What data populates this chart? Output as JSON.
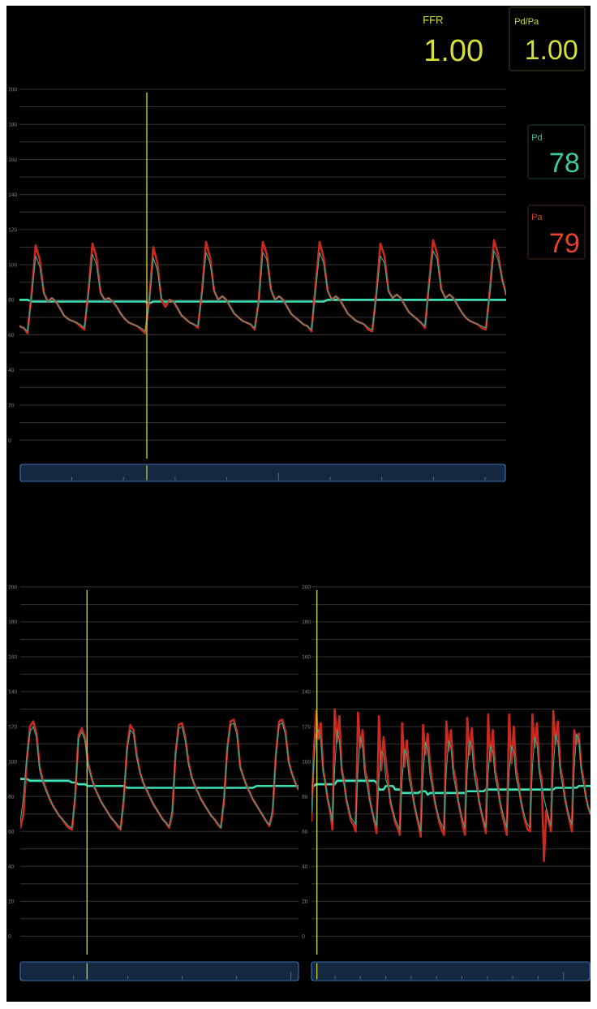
{
  "chart_data": [
    {
      "type": "other",
      "annotations": [
        "FFR",
        "1.00",
        "Pd/Pa",
        "1.00",
        "Pd",
        "78",
        "Pa",
        "79"
      ],
      "colors": [
        "#d4e03a",
        "#d4e03a",
        "#3ecba6",
        "#e8432f"
      ]
    },
    {
      "type": "line",
      "categories": [
        null,
        null,
        null,
        null,
        null,
        null,
        null,
        null,
        null,
        null,
        null,
        null,
        null,
        null,
        null,
        null,
        null,
        null,
        null,
        null,
        null,
        null,
        null,
        null,
        null,
        null,
        null,
        null,
        null,
        null,
        null,
        null,
        null,
        null,
        null,
        null,
        null,
        null,
        null,
        null,
        null,
        null,
        null,
        null,
        null,
        null,
        null,
        null,
        null,
        null,
        null,
        null,
        null,
        null,
        null,
        null,
        null,
        null,
        null,
        null,
        null,
        null,
        null,
        null,
        null,
        null,
        null,
        null,
        null,
        null,
        null,
        null,
        null,
        null,
        null,
        null,
        null,
        null,
        null,
        null,
        null,
        null,
        null,
        null,
        null,
        null,
        null,
        null,
        null,
        null,
        null,
        null,
        null,
        null,
        null,
        null,
        null,
        null,
        null,
        null,
        null,
        null,
        null,
        null,
        null,
        null,
        null,
        null,
        null,
        null,
        null,
        null,
        null,
        null,
        null,
        null,
        null,
        null,
        null,
        null,
        null
      ],
      "series": [
        {
          "color": "#cc2a1f",
          "values": [
            65,
            64,
            61,
            84,
            111,
            103,
            84,
            79,
            81,
            79,
            75,
            71,
            69,
            68,
            67,
            65,
            63,
            85,
            112,
            104,
            84,
            80,
            81,
            79,
            76,
            72,
            69,
            67,
            66,
            65,
            63,
            61,
            80,
            110,
            101,
            80,
            76,
            80,
            79,
            75,
            71,
            69,
            67,
            66,
            64,
            85,
            113,
            104,
            85,
            80,
            82,
            80,
            76,
            72,
            70,
            68,
            67,
            66,
            63,
            80,
            113,
            106,
            86,
            80,
            82,
            80,
            76,
            72,
            70,
            68,
            66,
            65,
            62,
            88,
            113,
            104,
            85,
            80,
            82,
            80,
            76,
            72,
            70,
            68,
            67,
            66,
            63,
            62,
            84,
            112,
            105,
            85,
            81,
            83,
            81,
            77,
            73,
            71,
            69,
            67,
            64,
            90,
            114,
            106,
            86,
            81,
            83,
            81,
            77,
            73,
            70,
            68,
            67,
            66,
            64,
            63,
            86,
            114,
            106,
            92,
            83
          ]
        },
        {
          "color": "#3fa88b",
          "values": [
            65,
            64,
            62,
            82,
            105,
            99,
            84,
            79,
            81,
            79,
            75,
            71,
            69,
            68,
            67,
            66,
            64,
            83,
            106,
            100,
            84,
            80,
            81,
            79,
            76,
            72,
            69,
            67,
            66,
            65,
            64,
            62,
            78,
            104,
            97,
            81,
            78,
            80,
            79,
            75,
            71,
            69,
            67,
            66,
            65,
            83,
            107,
            101,
            85,
            80,
            82,
            80,
            76,
            72,
            70,
            68,
            67,
            66,
            64,
            78,
            107,
            103,
            86,
            80,
            82,
            80,
            76,
            72,
            70,
            68,
            66,
            65,
            63,
            85,
            107,
            101,
            85,
            80,
            82,
            80,
            76,
            72,
            70,
            68,
            67,
            66,
            64,
            63,
            82,
            105,
            101,
            85,
            81,
            83,
            81,
            77,
            73,
            71,
            69,
            67,
            65,
            88,
            108,
            103,
            86,
            81,
            83,
            81,
            77,
            73,
            70,
            68,
            67,
            66,
            65,
            64,
            84,
            108,
            103,
            92,
            83
          ]
        },
        {
          "color": "#3de0b5",
          "values": [
            80,
            80,
            80,
            79,
            79,
            79,
            79,
            79,
            79,
            79,
            79,
            79,
            79,
            79,
            79,
            79,
            79,
            79,
            79,
            79,
            79,
            79,
            79,
            79,
            79,
            79,
            79,
            79,
            79,
            79,
            79,
            79,
            78,
            79,
            79,
            79,
            79,
            79,
            79,
            79,
            79,
            79,
            79,
            79,
            79,
            79,
            79,
            79,
            79,
            79,
            79,
            79,
            79,
            79,
            79,
            79,
            79,
            79,
            79,
            79,
            79,
            79,
            79,
            79,
            79,
            79,
            79,
            79,
            79,
            79,
            79,
            79,
            79,
            79,
            79,
            79,
            80,
            80,
            80,
            80,
            80,
            80,
            80,
            80,
            80,
            80,
            80,
            80,
            80,
            80,
            80,
            80,
            80,
            80,
            80,
            80,
            80,
            80,
            80,
            80,
            80,
            80,
            80,
            80,
            80,
            80,
            80,
            80,
            80,
            80,
            80,
            80,
            80,
            80,
            80,
            80,
            80,
            80,
            80,
            80,
            80
          ]
        }
      ],
      "ylim": [
        -11,
        200
      ],
      "yticks": [
        0,
        {
          "value": 10,
          "label": null
        },
        20,
        {
          "value": 30,
          "label": null
        },
        40,
        {
          "value": 50,
          "label": null
        },
        60,
        {
          "value": 70,
          "label": null
        },
        80,
        {
          "value": 90,
          "label": null
        },
        100,
        {
          "value": 110,
          "label": null
        },
        120,
        {
          "value": 130,
          "label": null
        },
        140,
        {
          "value": 150,
          "label": null
        },
        160,
        {
          "value": 170,
          "label": null
        },
        180,
        {
          "value": 190,
          "label": null
        },
        200
      ],
      "grid": "y",
      "tick_labels": "y"
    },
    {
      "type": "line",
      "categories": [
        null,
        null,
        null,
        null,
        null,
        null,
        null,
        null,
        null,
        null,
        null,
        null,
        null,
        null,
        null,
        null,
        null,
        null,
        null,
        null,
        null,
        null,
        null,
        null,
        null,
        null,
        null,
        null,
        null,
        null,
        null,
        null,
        null,
        null,
        null,
        null,
        null,
        null,
        null,
        null,
        null,
        null,
        null,
        null,
        null,
        null,
        null,
        null,
        null,
        null,
        null,
        null,
        null,
        null,
        null,
        null,
        null,
        null,
        null,
        null,
        null,
        null,
        null,
        null,
        null,
        null,
        null,
        null,
        null,
        null,
        null,
        null,
        null,
        null,
        null,
        null,
        null,
        null,
        null,
        null,
        null,
        null,
        null,
        null,
        null,
        null,
        null
      ],
      "series": [
        {
          "color": "#cc2a1f",
          "values": [
            62,
            70,
            100,
            120,
            123,
            116,
            97,
            89,
            84,
            79,
            75,
            72,
            69,
            67,
            64,
            62,
            61,
            80,
            115,
            119,
            114,
            99,
            91,
            85,
            81,
            77,
            74,
            71,
            68,
            66,
            63,
            61,
            78,
            108,
            121,
            118,
            104,
            94,
            88,
            84,
            80,
            76,
            73,
            70,
            67,
            65,
            62,
            70,
            105,
            121,
            122,
            114,
            100,
            91,
            86,
            82,
            78,
            75,
            72,
            69,
            67,
            64,
            62,
            78,
            108,
            123,
            124,
            117,
            97,
            91,
            86,
            82,
            78,
            75,
            72,
            69,
            66,
            63,
            70,
            104,
            123,
            124,
            117,
            100,
            93,
            88,
            84
          ]
        },
        {
          "color": "#3fa88b",
          "values": [
            65,
            80,
            102,
            117,
            120,
            114,
            95,
            88,
            83,
            79,
            75,
            72,
            69,
            67,
            65,
            63,
            62,
            82,
            113,
            117,
            112,
            97,
            91,
            85,
            81,
            77,
            74,
            71,
            68,
            66,
            64,
            62,
            80,
            106,
            118,
            116,
            102,
            94,
            88,
            84,
            80,
            76,
            73,
            70,
            67,
            65,
            63,
            72,
            104,
            119,
            120,
            112,
            98,
            91,
            86,
            82,
            78,
            75,
            72,
            69,
            67,
            65,
            62,
            80,
            107,
            121,
            122,
            115,
            96,
            91,
            86,
            82,
            78,
            75,
            72,
            69,
            66,
            64,
            73,
            103,
            121,
            122,
            115,
            99,
            93,
            88,
            84
          ]
        },
        {
          "color": "#3de0b5",
          "values": [
            90,
            90,
            90,
            89,
            89,
            89,
            89,
            89,
            89,
            89,
            89,
            89,
            89,
            89,
            89,
            89,
            88,
            88,
            87,
            87,
            87,
            86,
            86,
            86,
            86,
            86,
            86,
            86,
            86,
            86,
            86,
            86,
            86,
            85,
            85,
            85,
            85,
            85,
            85,
            85,
            85,
            85,
            85,
            85,
            85,
            85,
            85,
            85,
            85,
            85,
            85,
            85,
            85,
            85,
            85,
            85,
            85,
            85,
            85,
            85,
            85,
            85,
            85,
            85,
            85,
            85,
            85,
            85,
            85,
            85,
            85,
            85,
            85,
            86,
            86,
            86,
            86,
            86,
            86,
            86,
            86,
            86,
            86,
            86,
            86,
            86,
            86
          ]
        }
      ],
      "ylim": [
        -11,
        200
      ],
      "yticks": [
        0,
        {
          "value": 10,
          "label": null
        },
        20,
        {
          "value": 30,
          "label": null
        },
        40,
        {
          "value": 50,
          "label": null
        },
        60,
        {
          "value": 70,
          "label": null
        },
        80,
        {
          "value": 90,
          "label": null
        },
        100,
        {
          "value": 110,
          "label": null
        },
        120,
        {
          "value": 130,
          "label": null
        },
        140,
        {
          "value": 150,
          "label": null
        },
        160,
        {
          "value": 170,
          "label": null
        },
        180,
        {
          "value": 190,
          "label": null
        },
        200
      ],
      "grid": "y",
      "tick_labels": "y"
    },
    {
      "type": "line",
      "categories": [
        null,
        null,
        null,
        null,
        null,
        null,
        null,
        null,
        null,
        null,
        null,
        null,
        null,
        null,
        null,
        null,
        null,
        null,
        null,
        null,
        null,
        null,
        null,
        null,
        null,
        null,
        null,
        null,
        null,
        null,
        null,
        null,
        null,
        null,
        null,
        null,
        null,
        null,
        null,
        null,
        null,
        null,
        null,
        null,
        null,
        null,
        null,
        null,
        null,
        null,
        null,
        null,
        null,
        null,
        null,
        null,
        null,
        null,
        null,
        null,
        null,
        null,
        null,
        null,
        null,
        null,
        null,
        null,
        null,
        null,
        null,
        null,
        null,
        null,
        null,
        null,
        null,
        null,
        null,
        null,
        null,
        null,
        null,
        null,
        null,
        null,
        null,
        null,
        null,
        null,
        null,
        null,
        null,
        null,
        null,
        null,
        null,
        null,
        null,
        null,
        null,
        null,
        null,
        null,
        null,
        null,
        null,
        null,
        null,
        null,
        null,
        null,
        null,
        null,
        null,
        null,
        null,
        null,
        null,
        null,
        null
      ],
      "series": [
        {
          "color": "#cc2a1f",
          "values": [
            66,
            105,
            129,
            113,
            122,
            96,
            88,
            78,
            72,
            61,
            130,
            111,
            126,
            96,
            89,
            78,
            72,
            66,
            64,
            60,
            128,
            108,
            118,
            95,
            90,
            79,
            72,
            66,
            59,
            126,
            95,
            114,
            100,
            88,
            76,
            71,
            65,
            62,
            58,
            122,
            97,
            112,
            96,
            86,
            77,
            70,
            64,
            57,
            121,
            104,
            116,
            98,
            88,
            77,
            71,
            65,
            61,
            58,
            123,
            106,
            118,
            96,
            90,
            78,
            71,
            64,
            58,
            125,
            104,
            119,
            96,
            90,
            78,
            71,
            65,
            59,
            127,
            100,
            118,
            95,
            88,
            77,
            70,
            64,
            58,
            127,
            99,
            120,
            96,
            88,
            78,
            71,
            65,
            61,
            60,
            127,
            108,
            122,
            96,
            90,
            43,
            72,
            66,
            60,
            129,
            110,
            123,
            97,
            90,
            79,
            72,
            66,
            60,
            118,
            110,
            116,
            97,
            90,
            80,
            74,
            70
          ]
        },
        {
          "color": "#3fa88b",
          "values": [
            70,
            100,
            116,
            118,
            112,
            94,
            87,
            79,
            73,
            65,
            96,
            118,
            112,
            94,
            87,
            79,
            73,
            68,
            66,
            64,
            95,
            114,
            108,
            92,
            86,
            78,
            72,
            67,
            63,
            90,
            106,
            104,
            90,
            85,
            78,
            72,
            67,
            64,
            61,
            90,
            107,
            104,
            90,
            84,
            77,
            71,
            66,
            60,
            92,
            111,
            107,
            92,
            85,
            78,
            72,
            67,
            64,
            61,
            95,
            112,
            108,
            92,
            85,
            78,
            72,
            67,
            62,
            95,
            112,
            108,
            92,
            85,
            78,
            72,
            67,
            62,
            94,
            109,
            106,
            91,
            85,
            78,
            72,
            67,
            62,
            94,
            109,
            106,
            91,
            85,
            78,
            72,
            67,
            64,
            62,
            96,
            114,
            110,
            93,
            86,
            79,
            73,
            68,
            63,
            96,
            116,
            111,
            94,
            86,
            79,
            73,
            68,
            64,
            96,
            116,
            112,
            95,
            87,
            80,
            74,
            70
          ]
        },
        {
          "color": "#3de0b5",
          "values": [
            86,
            86,
            87,
            87,
            87,
            87,
            87,
            87,
            87,
            87,
            87,
            89,
            89,
            89,
            89,
            89,
            89,
            89,
            89,
            89,
            89,
            89,
            89,
            89,
            89,
            89,
            89,
            89,
            88,
            84,
            84,
            84,
            86,
            86,
            86,
            86,
            84,
            84,
            84,
            82,
            82,
            82,
            82,
            82,
            82,
            82,
            82,
            83,
            83,
            83,
            81,
            82,
            82,
            82,
            82,
            82,
            82,
            82,
            82,
            82,
            82,
            82,
            82,
            82,
            82,
            82,
            82,
            83,
            83,
            83,
            83,
            83,
            83,
            83,
            83,
            84,
            84,
            84,
            84,
            84,
            84,
            84,
            84,
            84,
            84,
            84,
            84,
            84,
            84,
            84,
            84,
            84,
            84,
            84,
            84,
            84,
            84,
            84,
            84,
            84,
            84,
            84,
            84,
            84,
            84,
            85,
            85,
            85,
            85,
            85,
            85,
            85,
            85,
            85,
            85,
            86,
            86,
            86,
            86,
            86,
            86
          ]
        }
      ],
      "ylim": [
        -11,
        200
      ],
      "yticks": [
        0,
        {
          "value": 10,
          "label": null
        },
        20,
        {
          "value": 30,
          "label": null
        },
        40,
        {
          "value": 50,
          "label": null
        },
        60,
        {
          "value": 70,
          "label": null
        },
        80,
        {
          "value": 90,
          "label": null
        },
        100,
        {
          "value": 110,
          "label": null
        },
        120,
        {
          "value": 130,
          "label": null
        },
        140,
        {
          "value": 150,
          "label": null
        },
        160,
        {
          "value": 170,
          "label": null
        },
        180,
        {
          "value": 190,
          "label": null
        },
        200
      ],
      "grid": "y",
      "tick_labels": "y"
    }
  ]
}
